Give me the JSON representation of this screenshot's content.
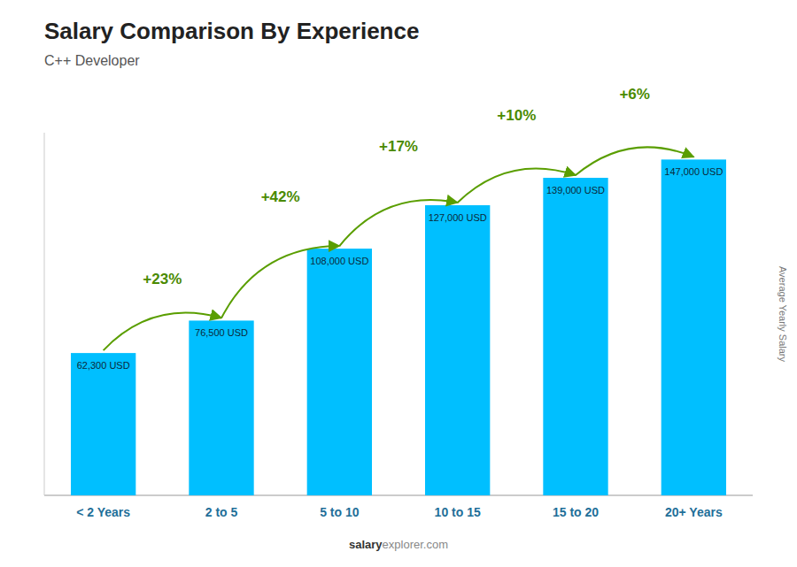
{
  "chart_data": {
    "type": "bar",
    "title": "Salary Comparison By Experience",
    "subtitle": "C++ Developer",
    "ylabel": "Average Yearly Salary",
    "categories": [
      "< 2 Years",
      "2 to 5",
      "5 to 10",
      "10 to 15",
      "15 to 20",
      "20+ Years"
    ],
    "values": [
      62300,
      76500,
      108000,
      127000,
      139000,
      147000
    ],
    "value_labels": [
      "62,300 USD",
      "76,500 USD",
      "108,000 USD",
      "127,000 USD",
      "139,000 USD",
      "147,000 USD"
    ],
    "data_labels": true,
    "annotations": [
      "+23%",
      "+42%",
      "+17%",
      "+10%",
      "+6%"
    ],
    "watermark": [
      "salary",
      "explorer.com"
    ],
    "color": "#00bfff",
    "ylim": [
      0,
      158760
    ],
    "yticks": [],
    "tick_labels": "x",
    "grid": false
  }
}
